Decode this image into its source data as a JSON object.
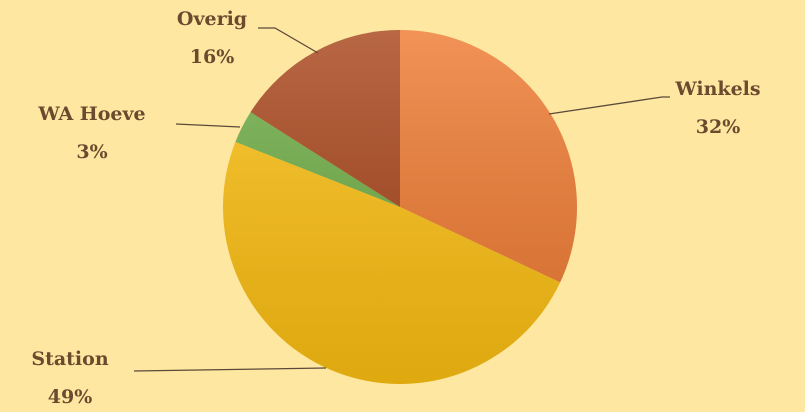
{
  "chart_data": {
    "type": "pie",
    "categories": [
      "Winkels",
      "Station",
      "WA Hoeve",
      "Overig"
    ],
    "values": [
      32,
      49,
      3,
      16
    ],
    "value_labels": [
      "32%",
      "49%",
      "3%",
      "16%"
    ],
    "colors": [
      "#ef7b32",
      "#fdc012",
      "#6fad46",
      "#a9461c"
    ]
  }
}
